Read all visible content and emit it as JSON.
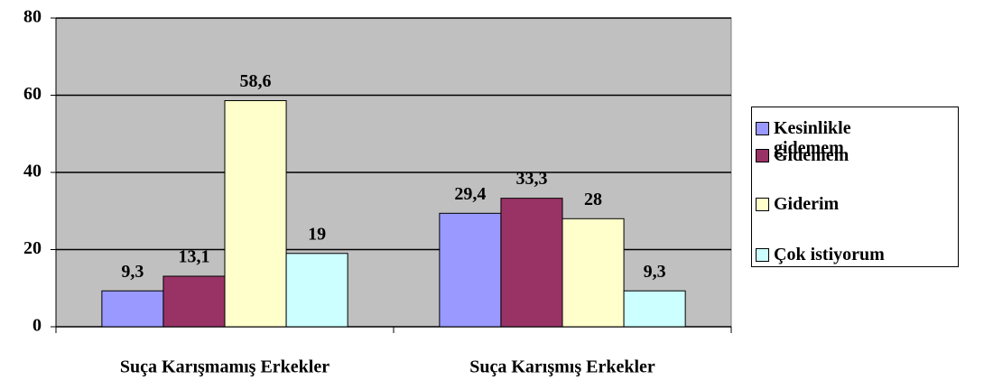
{
  "chart_data": {
    "type": "bar",
    "categories": [
      "Suça Karışmamış Erkekler",
      "Suça Karışmış Erkekler"
    ],
    "series": [
      {
        "name": "Kesinlikle gidemem",
        "color": "#9999ff",
        "values": [
          9.3,
          29.4
        ],
        "value_labels": [
          "9,3",
          "29,4"
        ]
      },
      {
        "name": "Gidemem",
        "color": "#993366",
        "values": [
          13.1,
          33.3
        ],
        "value_labels": [
          "13,1",
          "33,3"
        ]
      },
      {
        "name": "Giderim",
        "color": "#ffffcc",
        "values": [
          58.6,
          28
        ],
        "value_labels": [
          "58,6",
          "28"
        ]
      },
      {
        "name": "Çok istiyorum",
        "color": "#ccffff",
        "values": [
          19,
          9.3
        ],
        "value_labels": [
          "19",
          "9,3"
        ]
      }
    ],
    "ylim": [
      0,
      80
    ],
    "yticks": [
      0,
      20,
      40,
      60,
      80
    ],
    "grid": true,
    "legend": "right"
  }
}
